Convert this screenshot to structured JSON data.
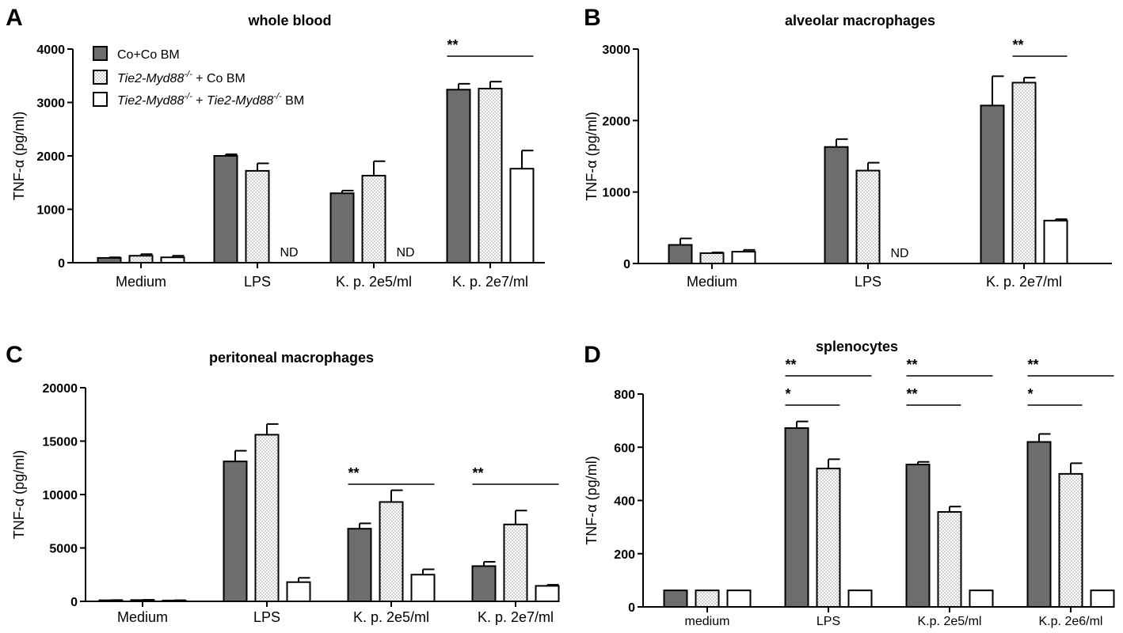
{
  "legend": {
    "items": [
      {
        "pattern": "dark",
        "text": "Co+Co BM"
      },
      {
        "pattern": "dotted",
        "parts": [
          {
            "t": "Tie2-Myd88",
            "i": true
          },
          {
            "t": "-/-",
            "sup": true,
            "i": true
          },
          {
            "t": " + Co BM"
          }
        ]
      },
      {
        "pattern": "white",
        "parts": [
          {
            "t": "Tie2-Myd88",
            "i": true
          },
          {
            "t": "-/-",
            "sup": true,
            "i": true
          },
          {
            "t": " + "
          },
          {
            "t": "Tie2-Myd88",
            "i": true
          },
          {
            "t": "-/-",
            "sup": true,
            "i": true
          },
          {
            "t": " BM"
          }
        ]
      }
    ]
  },
  "chart_data": [
    {
      "panel": "A",
      "type": "bar",
      "title": "whole blood",
      "ylabel": "TNF-α (pg/ml)",
      "ylim": [
        0,
        4000
      ],
      "yticks": [
        0,
        1000,
        2000,
        3000,
        4000
      ],
      "categories": [
        "Medium",
        "LPS",
        "K. p. 2e5/ml",
        "K. p. 2e7/ml"
      ],
      "series": [
        {
          "name": "Co+Co BM",
          "values": [
            90,
            2000,
            1300,
            3240
          ],
          "errors": [
            10,
            30,
            50,
            110
          ]
        },
        {
          "name": "Tie2-Myd88-/- + Co BM",
          "values": [
            130,
            1720,
            1630,
            3260
          ],
          "errors": [
            30,
            140,
            270,
            130
          ]
        },
        {
          "name": "Tie2-Myd88-/- + Tie2-Myd88-/- BM",
          "values": [
            100,
            null,
            null,
            1760
          ],
          "errors": [
            30,
            null,
            null,
            340
          ]
        }
      ],
      "nd_labels": [
        {
          "category": 1,
          "series": 2,
          "text": "ND"
        },
        {
          "category": 2,
          "series": 2,
          "text": "ND"
        }
      ],
      "significance": [
        {
          "category": 3,
          "from": 0,
          "to": 2,
          "label": "**",
          "level": 1
        }
      ]
    },
    {
      "panel": "B",
      "type": "bar",
      "title": "alveolar macrophages",
      "ylabel": "TNF-α (pg/ml)",
      "ylim": [
        0,
        3000
      ],
      "yticks": [
        0,
        1000,
        2000,
        3000
      ],
      "categories": [
        "Medium",
        "LPS",
        "K. p. 2e7/ml"
      ],
      "series": [
        {
          "name": "Co+Co BM",
          "values": [
            260,
            1630,
            2210
          ],
          "errors": [
            90,
            110,
            410
          ]
        },
        {
          "name": "Tie2-Myd88-/- + Co BM",
          "values": [
            145,
            1300,
            2530
          ],
          "errors": [
            10,
            110,
            70
          ]
        },
        {
          "name": "Tie2-Myd88-/- + Tie2-Myd88-/- BM",
          "values": [
            165,
            null,
            600
          ],
          "errors": [
            25,
            null,
            20
          ]
        }
      ],
      "nd_labels": [
        {
          "category": 1,
          "series": 2,
          "text": "ND"
        }
      ],
      "significance": [
        {
          "category": 2,
          "from": 1,
          "to": 2,
          "label": "**",
          "level": 1
        }
      ]
    },
    {
      "panel": "C",
      "type": "bar",
      "title": "peritoneal macrophages",
      "ylabel": "TNF-α (pg/ml)",
      "ylim": [
        0,
        20000
      ],
      "yticks": [
        0,
        5000,
        10000,
        15000,
        20000
      ],
      "categories": [
        "Medium",
        "LPS",
        "K. p. 2e5/ml",
        "K. p. 2e7/ml"
      ],
      "series": [
        {
          "name": "Co+Co BM",
          "values": [
            100,
            13100,
            6800,
            3300
          ],
          "errors": [
            20,
            1000,
            500,
            400
          ]
        },
        {
          "name": "Tie2-Myd88-/- + Co BM",
          "values": [
            120,
            15600,
            9300,
            7200
          ],
          "errors": [
            20,
            1000,
            1100,
            1300
          ]
        },
        {
          "name": "Tie2-Myd88-/- + Tie2-Myd88-/- BM",
          "values": [
            80,
            1800,
            2500,
            1450
          ],
          "errors": [
            20,
            400,
            500,
            100
          ]
        }
      ],
      "nd_labels": [],
      "significance": [
        {
          "category": 2,
          "from": 0,
          "to": 2,
          "label": "**",
          "level": 1
        },
        {
          "category": 3,
          "from": 0,
          "to": 2,
          "label": "**",
          "level": 1
        }
      ]
    },
    {
      "panel": "D",
      "type": "bar",
      "title": "splenocytes",
      "ylabel": "TNF-α (pg/ml)",
      "ylim": [
        0,
        800
      ],
      "yticks": [
        0,
        200,
        400,
        600,
        800
      ],
      "categories": [
        "medium",
        "LPS",
        "K.p. 2e5/ml",
        "K.p. 2e6/ml"
      ],
      "series": [
        {
          "name": "Co+Co BM",
          "values": [
            62,
            672,
            535,
            620
          ],
          "errors": [
            0,
            25,
            10,
            30
          ]
        },
        {
          "name": "Tie2-Myd88-/- + Co BM",
          "values": [
            62,
            520,
            357,
            500
          ],
          "errors": [
            0,
            35,
            20,
            40
          ]
        },
        {
          "name": "Tie2-Myd88-/- + Tie2-Myd88-/- BM",
          "values": [
            62,
            62,
            62,
            62
          ],
          "errors": [
            0,
            0,
            0,
            0
          ]
        }
      ],
      "nd_labels": [],
      "significance": [
        {
          "category": 1,
          "from": 0,
          "to": 2,
          "label": "**",
          "level": 2
        },
        {
          "category": 1,
          "from": 0,
          "to": 1,
          "label": "*",
          "level": 1
        },
        {
          "category": 2,
          "from": 0,
          "to": 2,
          "label": "**",
          "level": 2
        },
        {
          "category": 2,
          "from": 0,
          "to": 1,
          "label": "**",
          "level": 1
        },
        {
          "category": 3,
          "from": 0,
          "to": 2,
          "label": "**",
          "level": 2
        },
        {
          "category": 3,
          "from": 0,
          "to": 1,
          "label": "*",
          "level": 1
        }
      ]
    }
  ]
}
